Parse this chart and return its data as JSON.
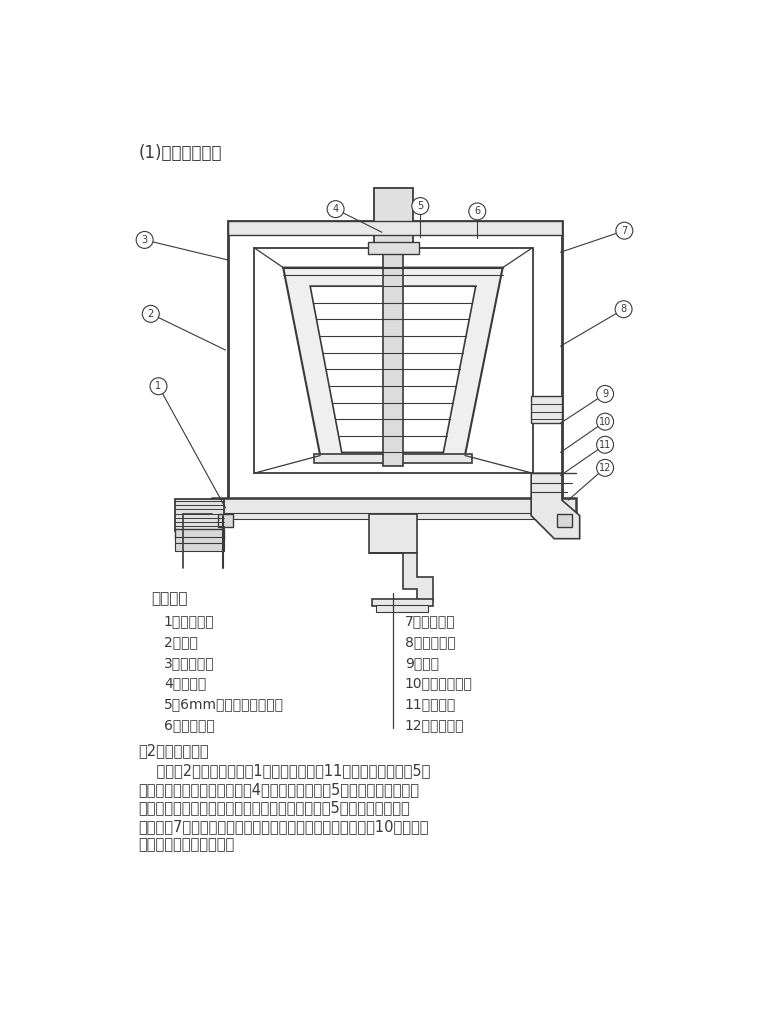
{
  "title": "(1)、结构示意图",
  "bg_color": "#ffffff",
  "line_color": "#3a3a3a",
  "section_title": "上图中：",
  "labels_left": [
    "1、皮带传动",
    "2、电机",
    "3、设备外坡",
    "4、给矿管",
    "5、6mm厉不锈锂内层隔棹",
    "6、压力水套"
  ],
  "labels_right": [
    "7、尾矿排管",
    "8、减震装置",
    "9、机架",
    "10、精矿排矿口",
    "11、中空轴",
    "12、反冲水管"
  ],
  "working_principle_title": "（2）工作原理：",
  "working_principle_lines": [
    "    电机（2）经皮带传动（1）带动中空轴（11），使内层隔棹（5）",
    "高速旋转。矿物料经给矿管（4）进入内层隔棹（5），矿物料在离心力",
    "作用卡使分选过程强化，重矿物停留在内层隔棹（5）中，轻矿物经尾",
    "矿排管（7）排出，经一个班次作业，停机将精矿从精矿口（10）排出，",
    "然后进入下一循环作业。"
  ],
  "circle_labels": [
    [
      1,
      78,
      342
    ],
    [
      2,
      68,
      248
    ],
    [
      3,
      60,
      152
    ],
    [
      4,
      308,
      112
    ],
    [
      5,
      418,
      108
    ],
    [
      6,
      492,
      115
    ],
    [
      7,
      683,
      140
    ],
    [
      8,
      682,
      242
    ],
    [
      9,
      658,
      352
    ],
    [
      10,
      658,
      388
    ],
    [
      11,
      658,
      418
    ],
    [
      12,
      658,
      448
    ]
  ],
  "leader_lines": [
    [
      78,
      342,
      165,
      500
    ],
    [
      68,
      248,
      165,
      295
    ],
    [
      60,
      152,
      168,
      178
    ],
    [
      308,
      112,
      368,
      142
    ],
    [
      418,
      108,
      418,
      148
    ],
    [
      492,
      115,
      492,
      150
    ],
    [
      683,
      140,
      600,
      168
    ],
    [
      682,
      242,
      600,
      290
    ],
    [
      658,
      352,
      600,
      390
    ],
    [
      658,
      388,
      600,
      428
    ],
    [
      658,
      418,
      600,
      458
    ],
    [
      658,
      448,
      610,
      490
    ]
  ]
}
